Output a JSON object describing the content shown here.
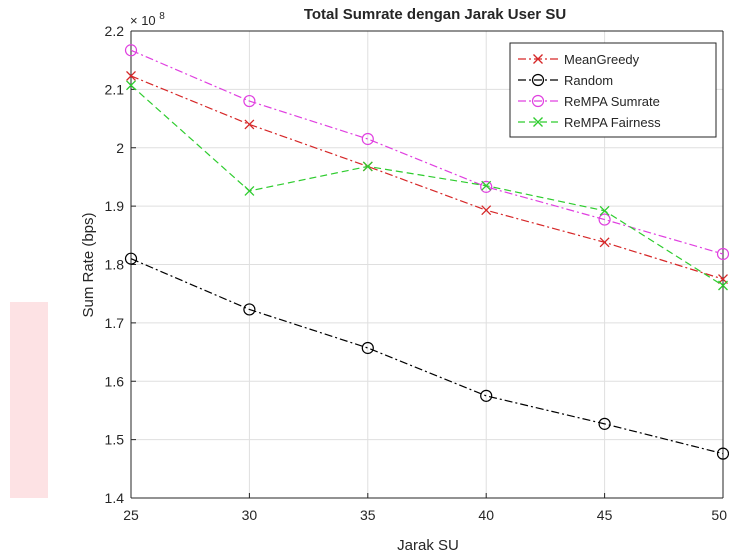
{
  "chart_data": {
    "type": "line",
    "title": "Total Sumrate dengan Jarak User SU",
    "xlabel": "Jarak SU",
    "ylabel": "Sum Rate (bps)",
    "y_exponent_label": "× 10",
    "y_exponent": "8",
    "x": [
      25,
      30,
      35,
      40,
      45,
      50
    ],
    "xlim": [
      25,
      50
    ],
    "ylim": [
      1.4,
      2.2
    ],
    "x_ticks": [
      25,
      30,
      35,
      40,
      45,
      50
    ],
    "x_tick_labels": [
      "25",
      "30",
      "35",
      "40",
      "45",
      "50"
    ],
    "y_ticks": [
      1.4,
      1.5,
      1.6,
      1.7,
      1.8,
      1.9,
      2.0,
      2.1,
      2.2
    ],
    "y_tick_labels": [
      "1.4",
      "1.5",
      "1.6",
      "1.7",
      "1.8",
      "1.9",
      "2",
      "2.1",
      "2.2"
    ],
    "grid": true,
    "legend_position": "top-right",
    "series": [
      {
        "name": "MeanGreedy",
        "values": [
          2.123,
          2.04,
          1.968,
          1.893,
          1.838,
          1.775
        ],
        "color": "#d62728",
        "dash": "dashdot",
        "marker": "x"
      },
      {
        "name": "Random",
        "values": [
          1.81,
          1.723,
          1.657,
          1.575,
          1.527,
          1.476
        ],
        "color": "#000000",
        "dash": "dashdot",
        "marker": "o"
      },
      {
        "name": "ReMPA Sumrate",
        "values": [
          2.167,
          2.08,
          2.015,
          1.933,
          1.877,
          1.818
        ],
        "color": "#e040e0",
        "dash": "dashdot",
        "marker": "o"
      },
      {
        "name": "ReMPA Fairness",
        "values": [
          2.107,
          1.926,
          1.968,
          1.935,
          1.892,
          1.764
        ],
        "color": "#2ecc2e",
        "dash": "dash",
        "marker": "x"
      }
    ]
  }
}
